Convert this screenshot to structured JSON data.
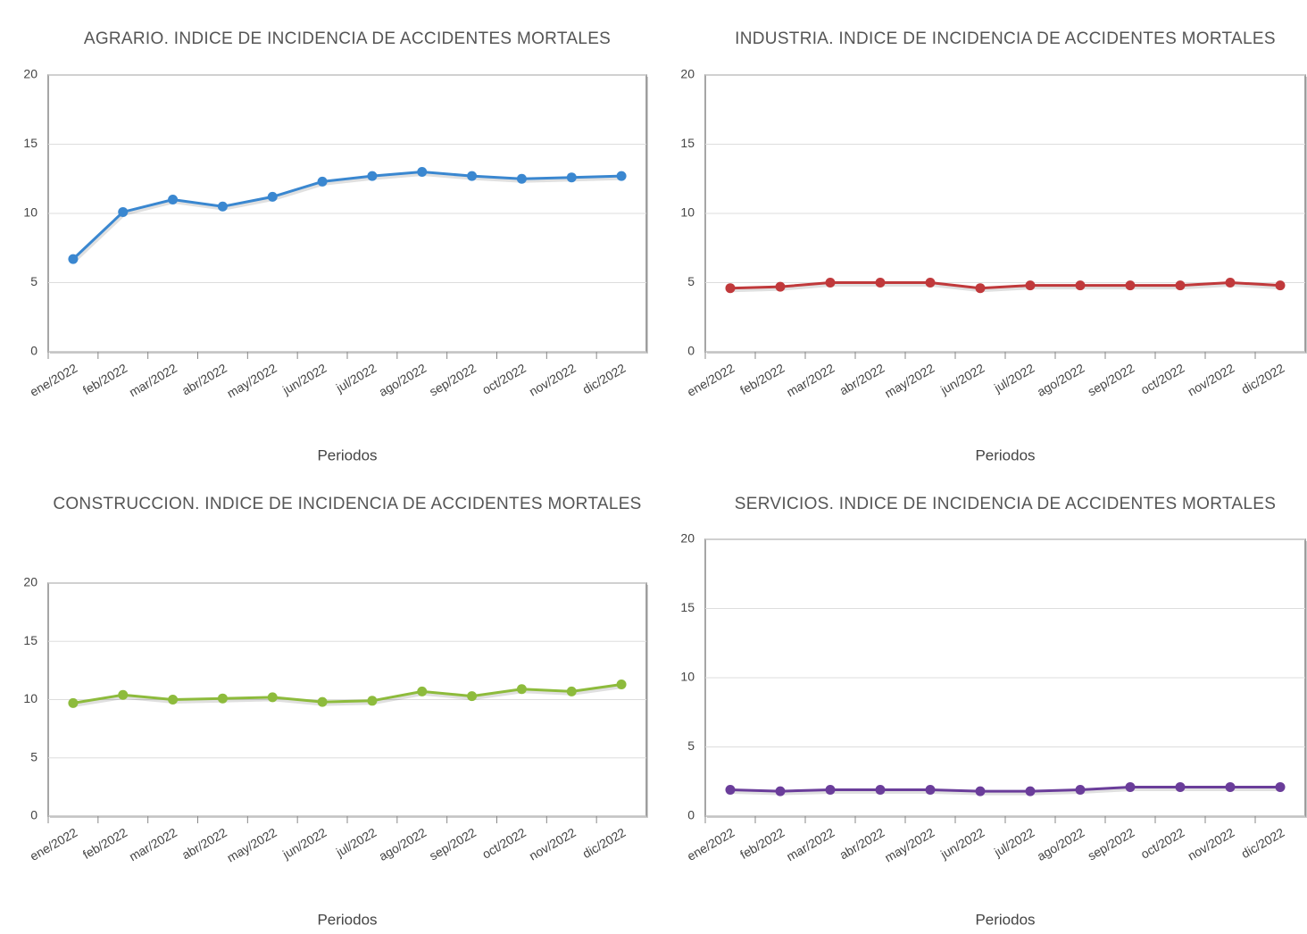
{
  "chart_data": [
    {
      "type": "line",
      "title": "AGRARIO. INDICE DE INCIDENCIA DE ACCIDENTES MORTALES",
      "x_label": "Periodos",
      "categories": [
        "ene/2022",
        "feb/2022",
        "mar/2022",
        "abr/2022",
        "may/2022",
        "jun/2022",
        "jul/2022",
        "ago/2022",
        "sep/2022",
        "oct/2022",
        "nov/2022",
        "dic/2022"
      ],
      "series": [
        {
          "color": "#3a87d0",
          "values": [
            6.7,
            10.1,
            11.0,
            10.5,
            11.2,
            12.3,
            12.7,
            13.0,
            12.7,
            12.5,
            12.6,
            12.7
          ]
        }
      ],
      "ylim": [
        0,
        20
      ],
      "yticks": [
        0,
        5,
        10,
        15,
        20
      ],
      "grid": true
    },
    {
      "type": "line",
      "title": "INDUSTRIA. INDICE DE INCIDENCIA DE ACCIDENTES MORTALES",
      "x_label": "Periodos",
      "categories": [
        "ene/2022",
        "feb/2022",
        "mar/2022",
        "abr/2022",
        "may/2022",
        "jun/2022",
        "jul/2022",
        "ago/2022",
        "sep/2022",
        "oct/2022",
        "nov/2022",
        "dic/2022"
      ],
      "series": [
        {
          "color": "#c0393b",
          "values": [
            4.6,
            4.7,
            5.0,
            5.0,
            5.0,
            4.6,
            4.8,
            4.8,
            4.8,
            4.8,
            5.0,
            4.8
          ]
        }
      ],
      "ylim": [
        0,
        20
      ],
      "yticks": [
        0,
        5,
        10,
        15,
        20
      ],
      "grid": true
    },
    {
      "type": "line",
      "title": "CONSTRUCCION. INDICE DE INCIDENCIA DE ACCIDENTES MORTALES",
      "x_label": "Periodos",
      "categories": [
        "ene/2022",
        "feb/2022",
        "mar/2022",
        "abr/2022",
        "may/2022",
        "jun/2022",
        "jul/2022",
        "ago/2022",
        "sep/2022",
        "oct/2022",
        "nov/2022",
        "dic/2022"
      ],
      "series": [
        {
          "color": "#8dbb3c",
          "values": [
            9.7,
            10.4,
            10.0,
            10.1,
            10.2,
            9.8,
            9.9,
            10.7,
            10.3,
            10.9,
            10.7,
            11.3
          ]
        }
      ],
      "ylim": [
        0,
        20
      ],
      "yticks": [
        0,
        5,
        10,
        15,
        20
      ],
      "grid": true
    },
    {
      "type": "line",
      "title": "SERVICIOS. INDICE DE INCIDENCIA DE ACCIDENTES MORTALES",
      "x_label": "Periodos",
      "categories": [
        "ene/2022",
        "feb/2022",
        "mar/2022",
        "abr/2022",
        "may/2022",
        "jun/2022",
        "jul/2022",
        "ago/2022",
        "sep/2022",
        "oct/2022",
        "nov/2022",
        "dic/2022"
      ],
      "series": [
        {
          "color": "#6a3d9a",
          "values": [
            1.9,
            1.8,
            1.9,
            1.9,
            1.9,
            1.8,
            1.8,
            1.9,
            2.1,
            2.1,
            2.1,
            2.1
          ]
        }
      ],
      "ylim": [
        0,
        20
      ],
      "yticks": [
        0,
        5,
        10,
        15,
        20
      ],
      "grid": true
    }
  ]
}
